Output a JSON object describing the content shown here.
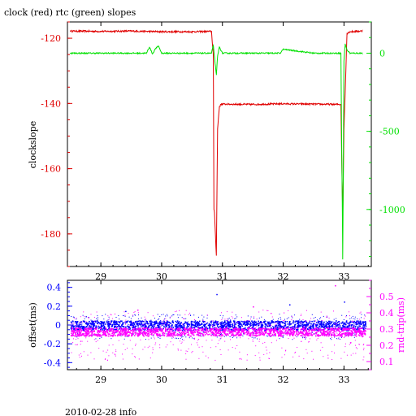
{
  "header": {
    "title": "clock (red) rtc (green) slopes"
  },
  "footer": {
    "text": "2010-02-28 info"
  },
  "colors": {
    "red": "#e00000",
    "green": "#00e000",
    "blue": "#0000ff",
    "magenta": "#ff00ff",
    "black": "#000000"
  },
  "chart_data": [
    {
      "type": "line",
      "title": "clock (red) rtc (green) slopes",
      "xlim": [
        28.45,
        33.45
      ],
      "x_ticks": [
        29,
        30,
        31,
        32,
        33
      ],
      "x_tick_labels": [
        "29",
        "30",
        "31",
        "32",
        "33"
      ],
      "ylabel": "clockslope",
      "ylim": [
        -190,
        -115
      ],
      "y_ticks": [
        -120,
        -140,
        -160,
        -180
      ],
      "y_tick_labels": [
        "-120",
        "-140",
        "-160",
        "-180"
      ],
      "y2lim": [
        -1365,
        200
      ],
      "y2_ticks": [
        0,
        -500,
        -1000
      ],
      "y2_tick_labels": [
        "0",
        "-500",
        "-1000"
      ],
      "series": [
        {
          "name": "clock",
          "color": "#e00000",
          "axis": "left",
          "x": [
            28.5,
            29.0,
            29.5,
            30.0,
            30.5,
            30.82,
            30.85,
            30.86,
            30.87,
            30.9,
            30.92,
            30.95,
            30.98,
            31.0,
            31.5,
            32.0,
            32.5,
            32.95,
            32.98,
            33.0,
            33.05,
            33.1,
            33.3
          ],
          "y": [
            -117.8,
            -117.9,
            -117.8,
            -118.0,
            -118.0,
            -117.9,
            -125.0,
            -172.5,
            -173.5,
            -186.5,
            -148.0,
            -141.0,
            -140.2,
            -140.2,
            -140.3,
            -140.1,
            -140.2,
            -140.3,
            -176.0,
            -148.0,
            -118.5,
            -118.0,
            -117.8
          ]
        },
        {
          "name": "rtc",
          "color": "#00e000",
          "axis": "right",
          "x": [
            28.5,
            29.5,
            29.75,
            29.8,
            29.85,
            29.9,
            29.95,
            30.0,
            30.3,
            30.82,
            30.85,
            30.9,
            30.92,
            30.95,
            31.0,
            31.5,
            31.95,
            32.0,
            32.5,
            32.95,
            32.98,
            33.0,
            33.02,
            33.05,
            33.1,
            33.3
          ],
          "y": [
            0,
            0,
            0,
            40,
            -5,
            30,
            45,
            0,
            0,
            0,
            50,
            -140,
            -20,
            40,
            0,
            0,
            0,
            25,
            0,
            0,
            -1320,
            -50,
            60,
            20,
            0,
            0
          ]
        }
      ]
    },
    {
      "type": "scatter",
      "xlim": [
        28.45,
        33.45
      ],
      "x_ticks": [
        29,
        30,
        31,
        32,
        33
      ],
      "x_tick_labels": [
        "29",
        "30",
        "31",
        "32",
        "33"
      ],
      "ylabel": "offset(ms)",
      "ylim": [
        -0.475,
        0.475
      ],
      "y_ticks": [
        0.4,
        0.2,
        0,
        -0.2,
        -0.4
      ],
      "y_tick_labels": [
        "0.4",
        "0.2",
        "0",
        "-0.2",
        "-0.4"
      ],
      "y2label": "rnd-trip(ms)",
      "y2lim": [
        0.05,
        0.6
      ],
      "y2_ticks": [
        0.5,
        0.4,
        0.3,
        0.2,
        0.1
      ],
      "y2_tick_labels": [
        "0.5",
        "0.4",
        "0.3",
        "0.2",
        "0.1"
      ],
      "series": [
        {
          "name": "offset",
          "color": "#0000ff",
          "axis": "left",
          "x_range": [
            28.5,
            33.35
          ],
          "band_y": [
            -0.05,
            0.05
          ],
          "sparse_y": [
            -0.15,
            0.12
          ],
          "outliers": [
            [
              29.4,
              0.15
            ],
            [
              30.9,
              0.33
            ],
            [
              32.1,
              0.22
            ],
            [
              33.0,
              0.25
            ]
          ]
        },
        {
          "name": "round trip",
          "color": "#ff00ff",
          "axis": "right",
          "x_range": [
            28.5,
            33.35
          ],
          "band_y": [
            0.26,
            0.31
          ],
          "sparse_y": [
            0.11,
            0.42
          ],
          "outliers": [
            [
              29.6,
              0.42
            ],
            [
              31.5,
              0.44
            ],
            [
              32.85,
              0.57
            ]
          ]
        }
      ]
    }
  ]
}
